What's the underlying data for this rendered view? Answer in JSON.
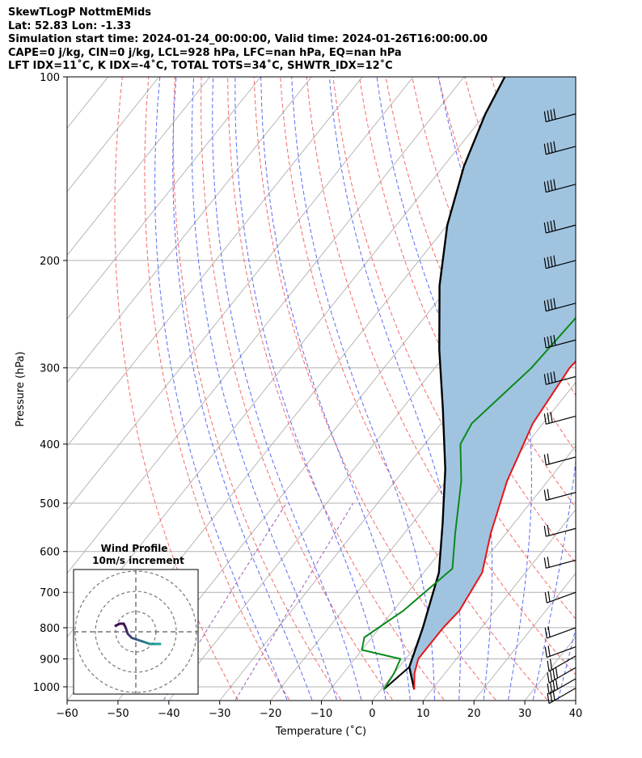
{
  "header": {
    "line1": "SkewTLogP NottmEMids",
    "line2": "Lat: 52.83   Lon: -1.33",
    "line3": "Simulation start time: 2024-01-24_00:00:00, Valid time: 2024-01-26T16:00:00.00",
    "line4": "CAPE=0 j/kg, CIN=0 j/kg, LCL=928 hPa, LFC=nan hPa, EQ=nan hPa",
    "line5": "LFT IDX=11˚C, K IDX=-4˚C, TOTAL TOTS=34˚C, SHWTR_IDX=12˚C"
  },
  "chart_data": {
    "type": "skewt",
    "xlabel": "Temperature (˚C)",
    "ylabel": "Pressure (hPa)",
    "xlim": [
      -60,
      40
    ],
    "ylim": [
      1050,
      100
    ],
    "y_log_scale": true,
    "grid": true,
    "x_ticks": [
      "−60",
      "−50",
      "−40",
      "−30",
      "−20",
      "−10",
      "0",
      "10",
      "20",
      "30",
      "40"
    ],
    "y_ticks": [
      "100",
      "200",
      "300",
      "400",
      "500",
      "600",
      "700",
      "800",
      "900",
      "1000"
    ],
    "colors": {
      "temperature": "#e8141a",
      "dewpoint": "#0a8a1a",
      "parcel": "#000000",
      "fill": "#a0c4e0",
      "dry_adiabat": "#f26b6b",
      "moist_adiabat": "#5a6cf0",
      "mixing_ratio": "#9b59b6",
      "isotherm": "#b0b0b0"
    },
    "series": [
      {
        "key": "temperature",
        "points": [
          [
            6.5,
            1010
          ],
          [
            4,
            950
          ],
          [
            2.5,
            900
          ],
          [
            2.5,
            800
          ],
          [
            3,
            750
          ],
          [
            1.5,
            650
          ],
          [
            -3,
            560
          ],
          [
            -8,
            460
          ],
          [
            -12,
            370
          ],
          [
            -13.5,
            300
          ],
          [
            -12,
            250
          ],
          [
            -8,
            200
          ],
          [
            -3,
            170
          ],
          [
            2,
            140
          ],
          [
            7,
            120
          ],
          [
            11,
            100
          ]
        ]
      },
      {
        "key": "dewpoint",
        "points": [
          [
            0.5,
            1010
          ],
          [
            0,
            950
          ],
          [
            -1,
            900
          ],
          [
            -10,
            870
          ],
          [
            -11.5,
            830
          ],
          [
            -8,
            750
          ],
          [
            -5,
            640
          ],
          [
            -10,
            560
          ],
          [
            -17,
            460
          ],
          [
            -23,
            400
          ],
          [
            -24,
            370
          ],
          [
            -21,
            300
          ],
          [
            -20,
            240
          ],
          [
            -20,
            200
          ],
          [
            -23,
            170
          ],
          [
            -24,
            160
          ],
          [
            -22,
            140
          ],
          [
            -19,
            120
          ],
          [
            -16,
            100
          ]
        ]
      },
      {
        "key": "parcel",
        "points": [
          [
            6.5,
            1010
          ],
          [
            2,
            928
          ],
          [
            -1.5,
            800
          ],
          [
            -7,
            650
          ],
          [
            -14,
            540
          ],
          [
            -22,
            440
          ],
          [
            -32,
            350
          ],
          [
            -42,
            280
          ],
          [
            -52,
            220
          ],
          [
            -60,
            175
          ],
          [
            -66,
            140
          ],
          [
            -70,
            115
          ],
          [
            -72,
            100
          ]
        ]
      }
    ],
    "dewpoint_surface_points": [
      [
        0.5,
        1010
      ],
      [
        2,
        928
      ]
    ],
    "barbs": [
      {
        "p": 1005,
        "speed": 30,
        "dir": 300
      },
      {
        "p": 970,
        "speed": 40,
        "dir": 300
      },
      {
        "p": 930,
        "speed": 40,
        "dir": 300
      },
      {
        "p": 890,
        "speed": 20,
        "dir": 300
      },
      {
        "p": 860,
        "speed": 20,
        "dir": 290
      },
      {
        "p": 800,
        "speed": 20,
        "dir": 290
      },
      {
        "p": 700,
        "speed": 20,
        "dir": 290
      },
      {
        "p": 620,
        "speed": 20,
        "dir": 285
      },
      {
        "p": 550,
        "speed": 20,
        "dir": 285
      },
      {
        "p": 480,
        "speed": 20,
        "dir": 285
      },
      {
        "p": 420,
        "speed": 20,
        "dir": 285
      },
      {
        "p": 360,
        "speed": 30,
        "dir": 285
      },
      {
        "p": 310,
        "speed": 40,
        "dir": 285
      },
      {
        "p": 270,
        "speed": 40,
        "dir": 285
      },
      {
        "p": 235,
        "speed": 40,
        "dir": 285
      },
      {
        "p": 200,
        "speed": 40,
        "dir": 285
      },
      {
        "p": 175,
        "speed": 40,
        "dir": 285
      },
      {
        "p": 150,
        "speed": 40,
        "dir": 285
      },
      {
        "p": 130,
        "speed": 40,
        "dir": 285
      },
      {
        "p": 115,
        "speed": 40,
        "dir": 285
      }
    ],
    "inset": {
      "title": "Wind Profile",
      "subtitle": "10m/s increment",
      "rings": [
        10,
        20,
        30
      ],
      "hodograph": [
        [
          -10,
          3
        ],
        [
          -8,
          4
        ],
        [
          -6,
          4
        ],
        [
          -5,
          2
        ],
        [
          -4,
          -1
        ],
        [
          -2,
          -3
        ],
        [
          1,
          -4
        ],
        [
          4,
          -5
        ],
        [
          7,
          -6
        ],
        [
          10,
          -6
        ],
        [
          12,
          -6
        ]
      ],
      "colors": [
        "#3b0f4f",
        "#3b0f4f",
        "#3b0f4f",
        "#40285e",
        "#443a70",
        "#3d4f80",
        "#2f6b8a",
        "#26808e",
        "#21918c",
        "#21a39a",
        "#21a39a"
      ]
    }
  }
}
